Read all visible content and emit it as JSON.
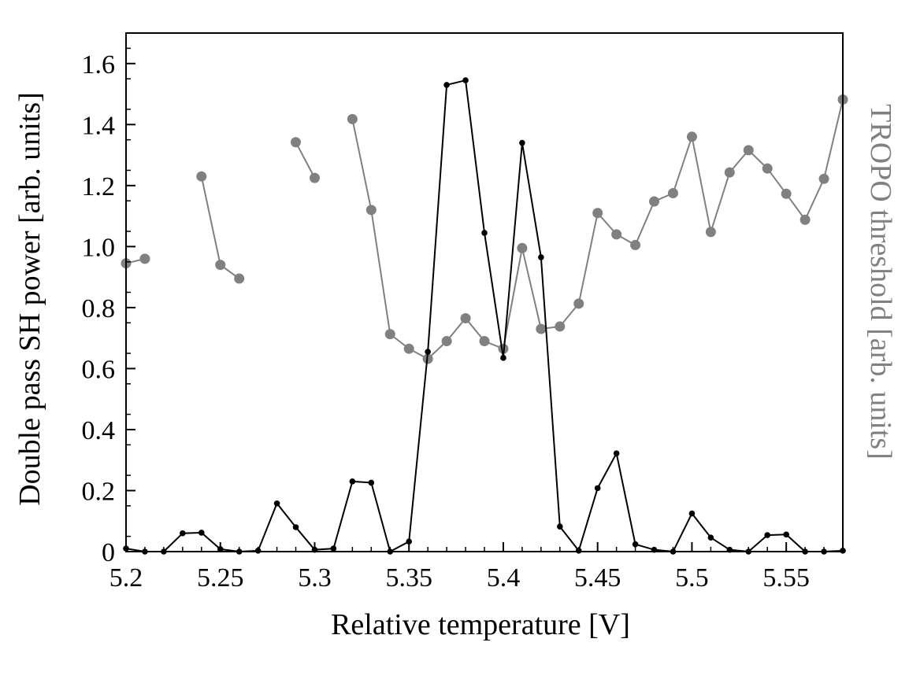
{
  "chart_data": {
    "type": "line",
    "title": "",
    "xlabel": "Relative temperature [V]",
    "ylabel": "Double pass SH power [arb. units]",
    "y2label": "TROPO threshold [arb. units]",
    "xlim": [
      5.2,
      5.58
    ],
    "ylim": [
      0,
      1.7
    ],
    "xticks": [
      5.2,
      5.25,
      5.3,
      5.35,
      5.4,
      5.45,
      5.5,
      5.55
    ],
    "xtick_labels": [
      "5.2",
      "5.25",
      "5.3",
      "5.35",
      "5.4",
      "5.45",
      "5.5",
      "5.55"
    ],
    "yticks": [
      0,
      0.2,
      0.4,
      0.6,
      0.8,
      1.0,
      1.2,
      1.4,
      1.6
    ],
    "ytick_labels": [
      "0",
      "0.2",
      "0.4",
      "0.6",
      "0.8",
      "1.0",
      "1.2",
      "1.4",
      "1.6"
    ],
    "grid": false,
    "colors": {
      "sh_power": "#000000",
      "tropo": "#808080"
    },
    "series": [
      {
        "key": "sh_power",
        "axis": "left",
        "color": "#000000",
        "segments": [
          [
            [
              5.2,
              0.01
            ],
            [
              5.21,
              0.0
            ],
            [
              5.22,
              0.0
            ],
            [
              5.23,
              0.06
            ],
            [
              5.24,
              0.062
            ],
            [
              5.25,
              0.008
            ],
            [
              5.26,
              0.0
            ],
            [
              5.27,
              0.003
            ],
            [
              5.28,
              0.158
            ],
            [
              5.29,
              0.08
            ],
            [
              5.3,
              0.006
            ],
            [
              5.31,
              0.01
            ],
            [
              5.32,
              0.23
            ],
            [
              5.33,
              0.226
            ],
            [
              5.34,
              0.0
            ],
            [
              5.35,
              0.033
            ],
            [
              5.36,
              0.655
            ],
            [
              5.37,
              1.53
            ],
            [
              5.38,
              1.545
            ],
            [
              5.39,
              1.045
            ],
            [
              5.4,
              0.635
            ],
            [
              5.41,
              1.34
            ],
            [
              5.42,
              0.965
            ],
            [
              5.43,
              0.082
            ],
            [
              5.44,
              0.003
            ],
            [
              5.45,
              0.208
            ],
            [
              5.46,
              0.322
            ],
            [
              5.47,
              0.024
            ],
            [
              5.48,
              0.006
            ],
            [
              5.49,
              0.0
            ],
            [
              5.5,
              0.125
            ],
            [
              5.51,
              0.046
            ],
            [
              5.52,
              0.006
            ],
            [
              5.53,
              0.0
            ],
            [
              5.54,
              0.054
            ],
            [
              5.55,
              0.056
            ],
            [
              5.56,
              0.0
            ],
            [
              5.57,
              0.0
            ],
            [
              5.58,
              0.003
            ]
          ]
        ]
      },
      {
        "key": "tropo",
        "axis": "right",
        "color": "#808080",
        "segments": [
          [
            [
              5.2,
              0.945
            ],
            [
              5.21,
              0.96
            ]
          ],
          [
            [
              5.24,
              1.23
            ],
            [
              5.25,
              0.94
            ],
            [
              5.26,
              0.895
            ]
          ],
          [
            [
              5.29,
              1.342
            ],
            [
              5.3,
              1.225
            ]
          ],
          [
            [
              5.32,
              1.418
            ],
            [
              5.33,
              1.12
            ],
            [
              5.34,
              0.713
            ],
            [
              5.35,
              0.665
            ],
            [
              5.36,
              0.632
            ],
            [
              5.37,
              0.69
            ],
            [
              5.38,
              0.765
            ],
            [
              5.39,
              0.69
            ],
            [
              5.4,
              0.665
            ],
            [
              5.41,
              0.995
            ],
            [
              5.42,
              0.73
            ],
            [
              5.43,
              0.738
            ],
            [
              5.44,
              0.813
            ],
            [
              5.45,
              1.11
            ],
            [
              5.46,
              1.04
            ],
            [
              5.47,
              1.005
            ],
            [
              5.48,
              1.148
            ],
            [
              5.49,
              1.175
            ],
            [
              5.5,
              1.36
            ],
            [
              5.51,
              1.048
            ],
            [
              5.52,
              1.243
            ],
            [
              5.53,
              1.316
            ],
            [
              5.54,
              1.256
            ],
            [
              5.55,
              1.173
            ],
            [
              5.56,
              1.088
            ],
            [
              5.57,
              1.222
            ],
            [
              5.58,
              1.482
            ]
          ]
        ]
      }
    ]
  }
}
